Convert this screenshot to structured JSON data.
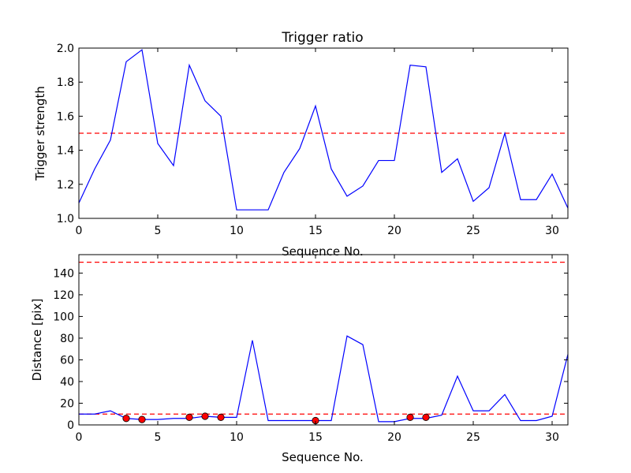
{
  "chart_data": [
    {
      "type": "line",
      "title": "Trigger ratio",
      "xlabel": "Sequence No.",
      "ylabel": "Trigger strength",
      "xlim": [
        0,
        31
      ],
      "ylim": [
        1.0,
        2.0
      ],
      "xticks": [
        0,
        5,
        10,
        15,
        20,
        25,
        30
      ],
      "xtick_labels": [
        "0",
        "5",
        "10",
        "15",
        "20",
        "25",
        "30"
      ],
      "yticks": [
        1.0,
        1.2,
        1.4,
        1.6,
        1.8,
        2.0
      ],
      "ytick_labels": [
        "1.0",
        "1.2",
        "1.4",
        "1.6",
        "1.8",
        "2.0"
      ],
      "grid": false,
      "series": [
        {
          "color": "#0000ff",
          "x": [
            0,
            1,
            2,
            3,
            4,
            5,
            6,
            7,
            8,
            9,
            10,
            11,
            12,
            13,
            14,
            15,
            16,
            17,
            18,
            19,
            20,
            21,
            22,
            23,
            24,
            25,
            26,
            27,
            28,
            29,
            30,
            31
          ],
          "values": [
            1.09,
            1.29,
            1.46,
            1.92,
            1.99,
            1.44,
            1.31,
            1.9,
            1.69,
            1.6,
            1.05,
            1.05,
            1.05,
            1.27,
            1.41,
            1.66,
            1.29,
            1.13,
            1.19,
            1.34,
            1.34,
            1.9,
            1.89,
            1.27,
            1.35,
            1.1,
            1.18,
            1.5,
            1.11,
            1.11,
            1.26,
            1.06
          ]
        }
      ],
      "hlines": [
        {
          "y": 1.5,
          "color": "#ff0000",
          "style": "dashed"
        }
      ]
    },
    {
      "type": "line",
      "title": "",
      "xlabel": "Sequence No.",
      "ylabel": "Distance [pix]",
      "xlim": [
        0,
        31
      ],
      "ylim": [
        0,
        157
      ],
      "xticks": [
        0,
        5,
        10,
        15,
        20,
        25,
        30
      ],
      "xtick_labels": [
        "0",
        "5",
        "10",
        "15",
        "20",
        "25",
        "30"
      ],
      "yticks": [
        0,
        20,
        40,
        60,
        80,
        100,
        120,
        140
      ],
      "ytick_labels": [
        "0",
        "20",
        "40",
        "60",
        "80",
        "100",
        "120",
        "140"
      ],
      "grid": false,
      "series": [
        {
          "color": "#0000ff",
          "x": [
            0,
            1,
            2,
            3,
            4,
            5,
            6,
            7,
            8,
            9,
            10,
            11,
            12,
            13,
            14,
            15,
            16,
            17,
            18,
            19,
            20,
            21,
            22,
            23,
            24,
            25,
            26,
            27,
            28,
            29,
            30,
            31
          ],
          "values": [
            10,
            10,
            13,
            6,
            5,
            5,
            6,
            6,
            8,
            7,
            7,
            78,
            4,
            4,
            4,
            4,
            4,
            82,
            74,
            3,
            3,
            6,
            6,
            9,
            45,
            13,
            13,
            28,
            4,
            4,
            8,
            65
          ]
        }
      ],
      "markers": {
        "color": "#ff0000",
        "x": [
          3,
          4,
          7,
          8,
          9,
          15,
          21,
          22
        ],
        "values": [
          6,
          5,
          7,
          8,
          7,
          4,
          7,
          7
        ]
      },
      "hlines": [
        {
          "y": 150,
          "color": "#ff0000",
          "style": "dashed"
        },
        {
          "y": 10,
          "color": "#ff0000",
          "style": "dashed"
        }
      ]
    }
  ]
}
